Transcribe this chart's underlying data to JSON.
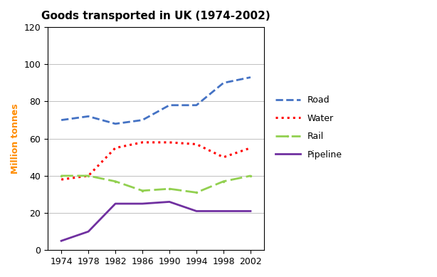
{
  "title": "Goods transported in UK (1974-2002)",
  "ylabel": "Million tonnes",
  "years": [
    1974,
    1978,
    1982,
    1986,
    1990,
    1994,
    1998,
    2002
  ],
  "road": [
    70,
    72,
    68,
    70,
    78,
    78,
    90,
    93
  ],
  "water": [
    38,
    40,
    55,
    58,
    58,
    57,
    50,
    55
  ],
  "rail": [
    40,
    40,
    37,
    32,
    33,
    31,
    37,
    40
  ],
  "pipeline": [
    5,
    10,
    25,
    25,
    26,
    21,
    21,
    21
  ],
  "road_color": "#4472C4",
  "water_color": "#FF0000",
  "rail_color": "#92D050",
  "pipeline_color": "#7030A0",
  "ylim": [
    0,
    120
  ],
  "yticks": [
    0,
    20,
    40,
    60,
    80,
    100,
    120
  ],
  "title_fontsize": 11,
  "axis_label_color": "#FF8C00",
  "legend_labels": [
    "Road",
    "Water",
    "Rail",
    "Pipeline"
  ],
  "bg_color": "#FFFFFF",
  "grid_color": "#C0C0C0"
}
